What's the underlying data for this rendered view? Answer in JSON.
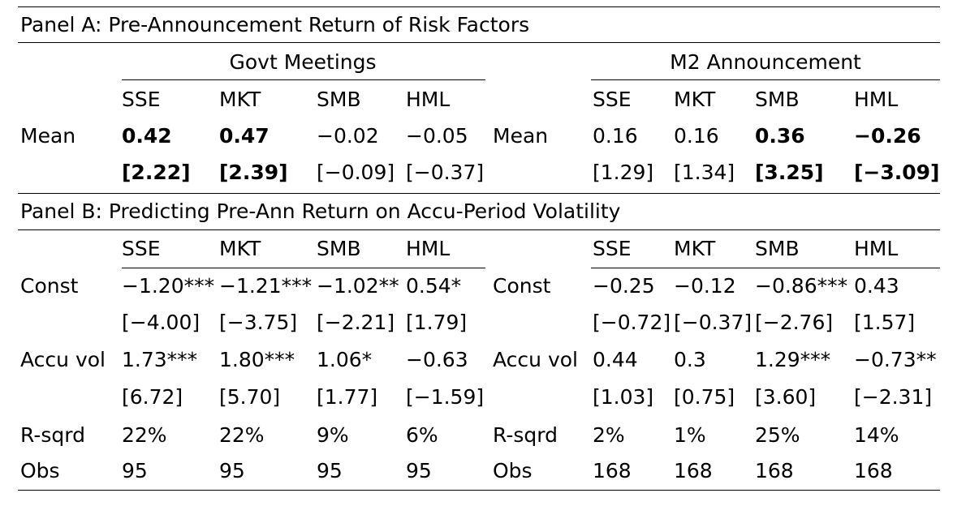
{
  "panel_a": {
    "title": "Panel A: Pre-Announcement Return of Risk Factors",
    "groups": [
      "Govt Meetings",
      "M2 Announcement"
    ],
    "header": [
      "SSE",
      "MKT",
      "SMB",
      "HML",
      "SSE",
      "MKT",
      "SMB",
      "HML"
    ],
    "rows": [
      {
        "labels": [
          "Mean",
          "Mean"
        ],
        "cells": [
          "0.42",
          "0.47",
          "−0.02",
          "−0.05",
          "0.16",
          "0.16",
          "0.36",
          "−0.26"
        ],
        "bold": [
          true,
          true,
          false,
          false,
          false,
          false,
          true,
          true
        ]
      },
      {
        "cells": [
          "[2.22]",
          "[2.39]",
          "[−0.09]",
          "[−0.37]",
          "[1.29]",
          "[1.34]",
          "[3.25]",
          "[−3.09]"
        ],
        "bold": [
          true,
          true,
          false,
          false,
          false,
          false,
          true,
          true
        ]
      }
    ]
  },
  "panel_b": {
    "title": "Panel B: Predicting Pre-Ann Return on Accu-Period Volatility",
    "header": [
      "SSE",
      "MKT",
      "SMB",
      "HML",
      "SSE",
      "MKT",
      "SMB",
      "HML"
    ],
    "rows": [
      {
        "labels": [
          "Const",
          "Const"
        ],
        "cells": [
          "−1.20***",
          "−1.21***",
          "−1.02**",
          "0.54*",
          "−0.25",
          "−0.12",
          "−0.86***",
          "0.43"
        ]
      },
      {
        "cells": [
          "[−4.00]",
          "[−3.75]",
          "[−2.21]",
          "[1.79]",
          "[−0.72]",
          "[−0.37]",
          "[−2.76]",
          "[1.57]"
        ]
      },
      {
        "labels": [
          "Accu vol",
          "Accu vol"
        ],
        "cells": [
          "1.73***",
          "1.80***",
          "1.06*",
          "−0.63",
          "0.44",
          "0.3",
          "1.29***",
          "−0.73**"
        ]
      },
      {
        "cells": [
          "[6.72]",
          "[5.70]",
          "[1.77]",
          "[−1.59]",
          "[1.03]",
          "[0.75]",
          "[3.60]",
          "[−2.31]"
        ]
      },
      {
        "labels": [
          "R-sqrd",
          "R-sqrd"
        ],
        "cells": [
          "22%",
          "22%",
          "9%",
          "6%",
          "2%",
          "1%",
          "25%",
          "14%"
        ]
      },
      {
        "labels": [
          "Obs",
          "Obs"
        ],
        "cells": [
          "95",
          "95",
          "95",
          "95",
          "168",
          "168",
          "168",
          "168"
        ]
      }
    ]
  }
}
